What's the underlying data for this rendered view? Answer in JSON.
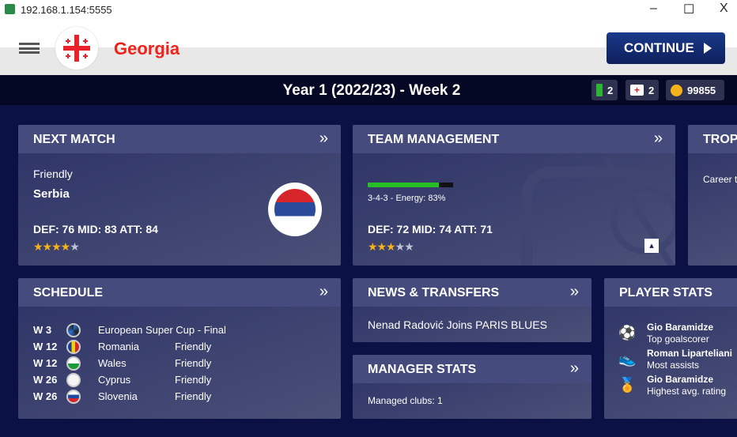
{
  "window": {
    "url": "192.168.1.154:5555",
    "minimize": "–",
    "maximize": "☐",
    "close": "X"
  },
  "header": {
    "country": "Georgia",
    "continue_label": "CONTINUE"
  },
  "topbar": {
    "week": "Year 1 (2022/23) - Week 2",
    "energy": "2",
    "medkits": "2",
    "coins": "99855"
  },
  "next_match": {
    "title": "NEXT MATCH",
    "type": "Friendly",
    "opponent": "Serbia",
    "ratings": "DEF: 76 MID: 83 ATT: 84",
    "stars": 4
  },
  "team_management": {
    "title": "TEAM MANAGEMENT",
    "energy_percent": 83,
    "formation": "3-4-3 - Energy: 83%",
    "ratings": "DEF: 72 MID: 74 ATT: 71",
    "stars": 3
  },
  "trophies": {
    "title": "TROP",
    "text": "Career t"
  },
  "schedule": {
    "title": "SCHEDULE",
    "rows": [
      {
        "week": "W 3",
        "team": "European Super Cup - Final",
        "type": ""
      },
      {
        "week": "W 12",
        "team": "Romania",
        "type": "Friendly"
      },
      {
        "week": "W 12",
        "team": "Wales",
        "type": "Friendly"
      },
      {
        "week": "W 26",
        "team": "Cyprus",
        "type": "Friendly"
      },
      {
        "week": "W 26",
        "team": "Slovenia",
        "type": "Friendly"
      }
    ]
  },
  "news": {
    "title": "NEWS & TRANSFERS",
    "headline": "Nenad Radović Joins PARIS BLUES"
  },
  "manager_stats": {
    "title": "MANAGER STATS",
    "text": "Managed clubs: 1"
  },
  "player_stats": {
    "title": "PLAYER STATS",
    "items": [
      {
        "icon": "soccer-ball-icon",
        "name": "Gio Baramidze",
        "stat": "Top goalscorer"
      },
      {
        "icon": "boot-icon",
        "name": "Roman Liparteliani",
        "stat": "Most assists"
      },
      {
        "icon": "medal-icon",
        "name": "Gio Baramidze",
        "stat": "Highest avg. rating"
      }
    ]
  }
}
